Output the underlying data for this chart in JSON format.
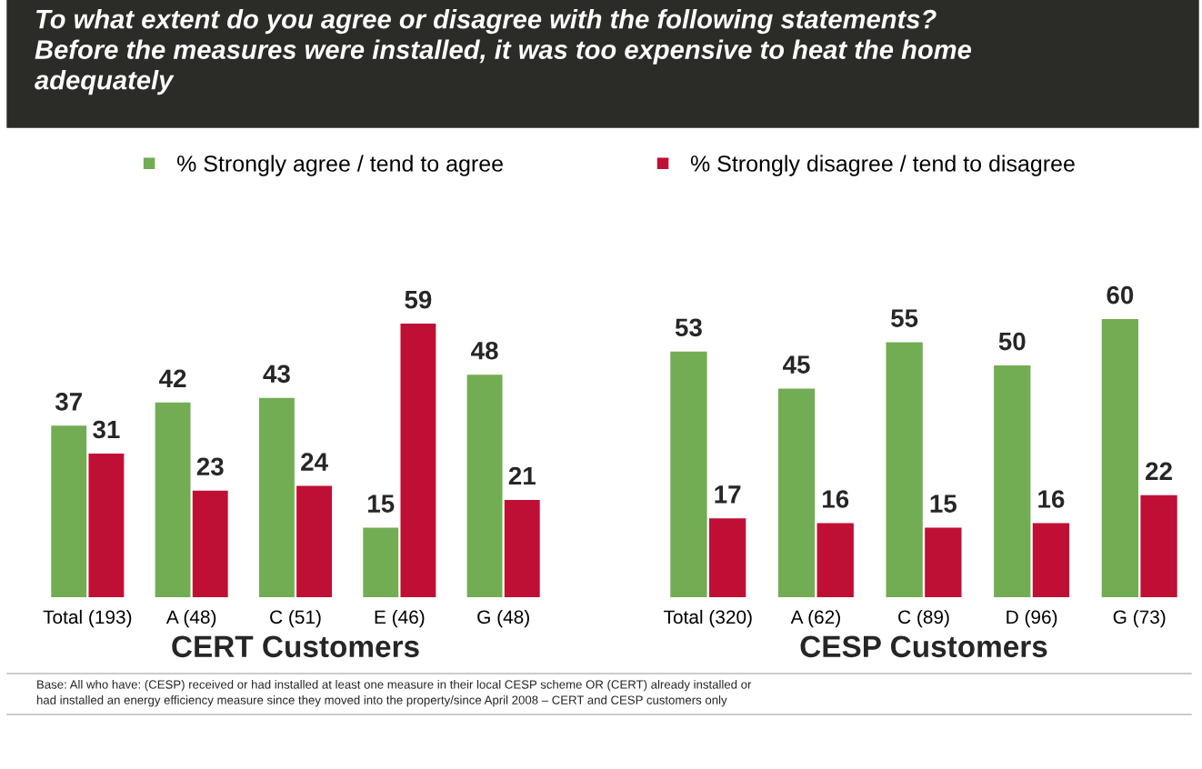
{
  "chart_data": [
    {
      "type": "bar",
      "title": "To what extent do you agree or disagree with the following statements?\nBefore the measures were installed, it was too expensive to heat the home\nadequately",
      "xlabel": "CERT Customers",
      "categories": [
        "Total (193)",
        "A (48)",
        "C (51)",
        "E (46)",
        "G (48)"
      ],
      "series": [
        {
          "name": "% Strongly agree / tend to agree",
          "color": "#72ad54",
          "values": [
            37,
            42,
            43,
            15,
            48
          ]
        },
        {
          "name": "% Strongly disagree / tend to disagree",
          "color": "#c00f35",
          "values": [
            31,
            23,
            24,
            59,
            21
          ]
        }
      ],
      "data_labels": true,
      "legend": "top",
      "annotations": [
        "Base: All who have: (CESP) received or had installed at least one measure in their local CESP scheme OR (CERT) already installed or\nhad installed an energy efficiency measure since they moved into the property/since April 2008 – CERT and CESP customers only"
      ]
    },
    {
      "type": "bar",
      "xlabel": "CESP Customers",
      "categories": [
        "Total (320)",
        "A (62)",
        "C (89)",
        "D (96)",
        "G (73)"
      ],
      "series": [
        {
          "color": "#72ad54",
          "values": [
            53,
            45,
            55,
            50,
            60
          ]
        },
        {
          "color": "#c00f35",
          "values": [
            17,
            16,
            15,
            16,
            22
          ]
        }
      ],
      "data_labels": true
    }
  ]
}
